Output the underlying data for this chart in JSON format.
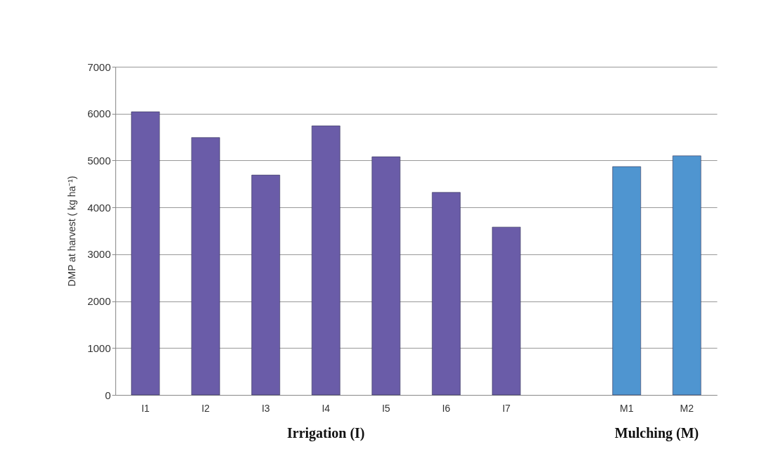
{
  "chart_data": {
    "type": "bar",
    "categories": [
      "I1",
      "I2",
      "I3",
      "I4",
      "I5",
      "I6",
      "I7",
      null,
      "M1",
      "M2"
    ],
    "values": [
      6040,
      5490,
      4690,
      5740,
      5080,
      4320,
      3580,
      null,
      4870,
      5100
    ],
    "colors": [
      "#6a5ca8",
      "#6a5ca8",
      "#6a5ca8",
      "#6a5ca8",
      "#6a5ca8",
      "#6a5ca8",
      "#6a5ca8",
      "#6a5ca8",
      "#4f95d0",
      "#4f95d0"
    ],
    "ylabel": "DMP at harvest ( kg ha⁻¹)",
    "xlabel": "Irrigation (I)",
    "annotations": [
      "Mulching (M)"
    ],
    "ylim": [
      0,
      7000
    ],
    "yticks": [
      0,
      1000,
      2000,
      3000,
      4000,
      5000,
      6000,
      7000
    ],
    "grid": "y"
  }
}
